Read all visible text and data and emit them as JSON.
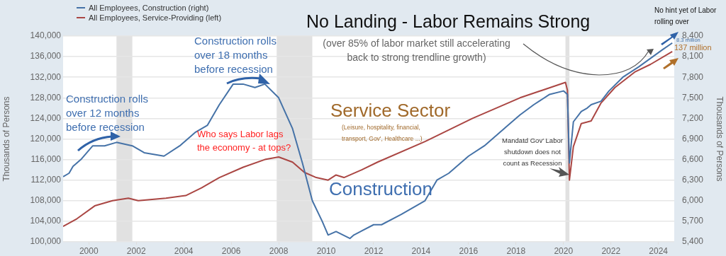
{
  "chart_data": {
    "type": "line",
    "title": "No Landing - Labor Remains Strong",
    "subtitle": "(over 85% of labor market still accelerating back to strong trendline growth)",
    "ylabel": "Thousands of Persons",
    "y2label": "Thousands of Persons",
    "series": [
      {
        "name": "All Employees, Construction (right)",
        "color": "#4572a7",
        "axis": "y2",
        "x": [
          "1998-12",
          "1999-03",
          "1999-05",
          "1999-09",
          "1999-12",
          "2000-03",
          "2000-09",
          "2001-03",
          "2001-11",
          "2002-05",
          "2003-03",
          "2003-11",
          "2004-07",
          "2005-01",
          "2005-07",
          "2006-02",
          "2006-07",
          "2007-01",
          "2007-06",
          "2008-01",
          "2008-08",
          "2009-01",
          "2009-06",
          "2009-11",
          "2010-02",
          "2010-06",
          "2011-01",
          "2011-03",
          "2012-01",
          "2012-05",
          "2013-03",
          "2014-03",
          "2014-09",
          "2015-03",
          "2016-01",
          "2016-09",
          "2017-09",
          "2018-03",
          "2018-10",
          "2019-06",
          "2020-01",
          "2020-03",
          "2020-04",
          "2020-06",
          "2020-10",
          "2021-01",
          "2021-03",
          "2021-08",
          "2021-12",
          "2022-07",
          "2023-03",
          "2024-03",
          "2024-08"
        ],
        "values": [
          6350,
          6400,
          6500,
          6600,
          6700,
          6800,
          6800,
          6850,
          6800,
          6700,
          6650,
          6800,
          7000,
          7100,
          7400,
          7700,
          7700,
          7650,
          7700,
          7500,
          7050,
          6550,
          6000,
          5700,
          5500,
          5550,
          5450,
          5500,
          5650,
          5650,
          5800,
          6000,
          6300,
          6400,
          6650,
          6800,
          7100,
          7250,
          7400,
          7550,
          7600,
          7550,
          6550,
          7150,
          7300,
          7350,
          7400,
          7450,
          7600,
          7800,
          7950,
          8200,
          8300
        ]
      },
      {
        "name": "All Employees, Service-Providing (left)",
        "color": "#aa4643",
        "x": [
          "1998-12",
          "1999-07",
          "2000-04",
          "2001-01",
          "2001-09",
          "2002-02",
          "2003-04",
          "2004-02",
          "2004-10",
          "2005-07",
          "2006-07",
          "2007-06",
          "2008-01",
          "2008-08",
          "2009-02",
          "2009-08",
          "2010-02",
          "2010-06",
          "2010-10",
          "2011-07",
          "2012-03",
          "2014-03",
          "2016-03",
          "2018-03",
          "2020-02",
          "2020-03",
          "2020-04",
          "2020-06",
          "2020-10",
          "2021-03",
          "2021-08",
          "2022-03",
          "2023-01",
          "2023-09",
          "2024-08"
        ],
        "values": [
          103000,
          104500,
          107000,
          108000,
          108500,
          108000,
          108500,
          109000,
          110500,
          112500,
          114500,
          116000,
          116500,
          115500,
          113500,
          112500,
          112000,
          113000,
          112500,
          114000,
          115500,
          119500,
          124000,
          128000,
          131000,
          129500,
          112000,
          118500,
          123000,
          123500,
          127000,
          130000,
          133000,
          134500,
          137000
        ]
      }
    ],
    "xlim": [
      "1998-12",
      "2024-09"
    ],
    "xticks": [
      "2000",
      "2002",
      "2004",
      "2006",
      "2008",
      "2010",
      "2012",
      "2014",
      "2016",
      "2018",
      "2020",
      "2022",
      "2024"
    ],
    "ylim": [
      100000,
      140000
    ],
    "yticks": [
      {
        "value": 100000,
        "label": "100,000"
      },
      {
        "value": 104000,
        "label": "104,000"
      },
      {
        "value": 108000,
        "label": "108,000"
      },
      {
        "value": 112000,
        "label": "112,000"
      },
      {
        "value": 116000,
        "label": "116,000"
      },
      {
        "value": 120000,
        "label": "120,000"
      },
      {
        "value": 124000,
        "label": "124,000"
      },
      {
        "value": 128000,
        "label": "128,000"
      },
      {
        "value": 132000,
        "label": "132,000"
      },
      {
        "value": 136000,
        "label": "136,000"
      },
      {
        "value": 140000,
        "label": "140,000"
      }
    ],
    "y2lim": [
      5400,
      8400
    ],
    "y2ticks": [
      {
        "value": 5400,
        "label": "5,400"
      },
      {
        "value": 5700,
        "label": "5,700"
      },
      {
        "value": 6000,
        "label": "6,000"
      },
      {
        "value": 6300,
        "label": "6,300"
      },
      {
        "value": 6600,
        "label": "6,600"
      },
      {
        "value": 6900,
        "label": "6,900"
      },
      {
        "value": 7200,
        "label": "7,200"
      },
      {
        "value": 7500,
        "label": "7,500"
      },
      {
        "value": 7800,
        "label": "7,800"
      },
      {
        "value": 8100,
        "label": "8,100"
      },
      {
        "value": 8400,
        "label": "8,400"
      }
    ],
    "bands": [
      {
        "axis": "x",
        "from": "2001-03",
        "to": "2001-11",
        "color": "#e1e1e1"
      },
      {
        "axis": "x",
        "from": "2007-12",
        "to": "2009-06",
        "color": "#e1e1e1"
      },
      {
        "axis": "x",
        "from": "2020-02",
        "to": "2020-04",
        "color": "#e1e1e1"
      }
    ],
    "annotations": [
      "Construction rolls over 12 months before recession",
      "Construction rolls over 18 months before recession",
      "Who says Labor lags the economy - at tops?",
      "Service Sector",
      "(Leisure, hospitality, financial, transport, Gov', Healthcare ...)",
      "Construction",
      "Mandatd Gov' Labor shutdown does not count as Recession",
      "No hint yet of Labor rolling over",
      "8.3 million",
      "137 million"
    ],
    "grid": "y",
    "legend": "top left",
    "marker": "none"
  }
}
